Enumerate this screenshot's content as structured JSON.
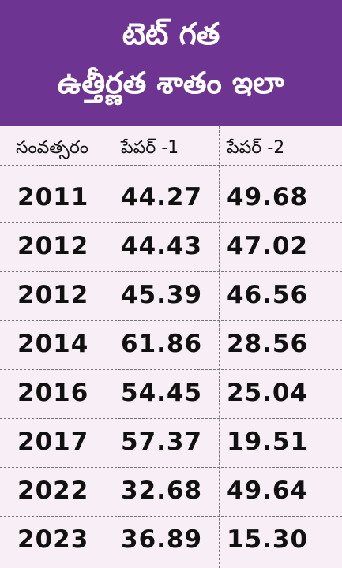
{
  "header": {
    "title_lines": [
      "టెట్ గత",
      "ఉత్తీర్ణత శాతం ఇలా"
    ]
  },
  "table": {
    "columns": [
      "సంవత్సరం",
      "పేపర్ -1",
      "పేపర్ -2"
    ],
    "rows": [
      [
        "2011",
        "44.27",
        "49.68"
      ],
      [
        "2012",
        "44.43",
        "47.02"
      ],
      [
        "2012",
        "45.39",
        "46.56"
      ],
      [
        "2014",
        "61.86",
        "28.56"
      ],
      [
        "2016",
        "54.45",
        "25.04"
      ],
      [
        "2017",
        "57.37",
        "19.51"
      ],
      [
        "2022",
        "32.68",
        "49.64"
      ],
      [
        "2023",
        "36.89",
        "15.30"
      ]
    ]
  }
}
